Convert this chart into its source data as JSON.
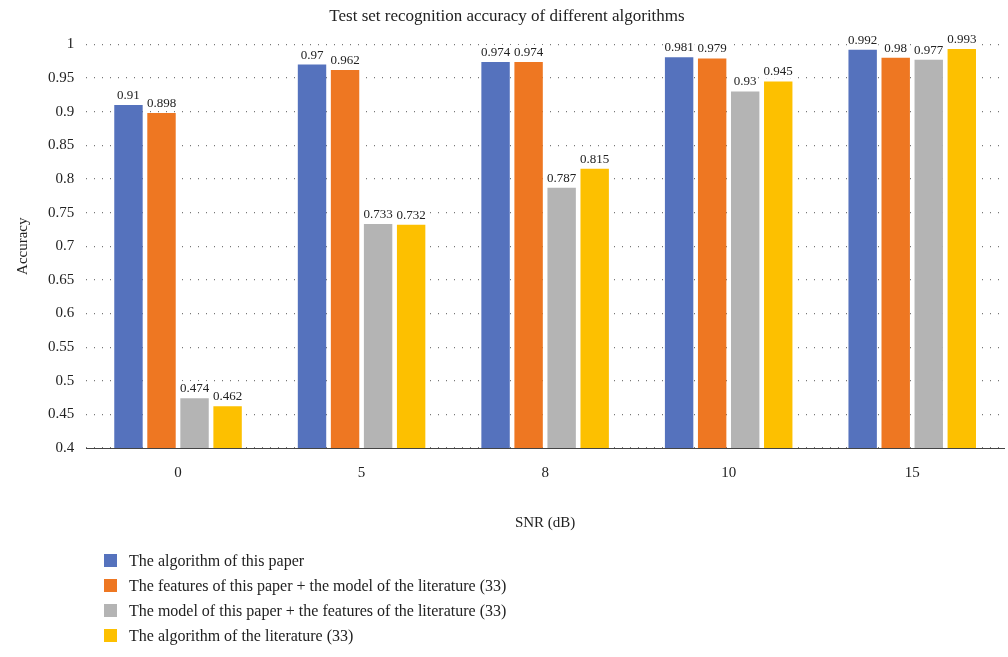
{
  "chart_data": {
    "type": "bar",
    "title": "Test set recognition accuracy of different algorithms",
    "xlabel": "SNR (dB)",
    "ylabel": "Accuracy",
    "categories": [
      "0",
      "5",
      "8",
      "10",
      "15"
    ],
    "series": [
      {
        "name": "The algorithm of this paper",
        "color": "#5572bd",
        "values": [
          0.91,
          0.97,
          0.974,
          0.981,
          0.992
        ]
      },
      {
        "name": "The features of this paper + the model of the literature (33)",
        "color": "#ee7722",
        "values": [
          0.898,
          0.962,
          0.974,
          0.979,
          0.98
        ]
      },
      {
        "name": "The model of this paper + the features of the literature (33)",
        "color": "#b4b4b4",
        "values": [
          0.474,
          0.733,
          0.787,
          0.93,
          0.977
        ]
      },
      {
        "name": "The algorithm of the literature (33)",
        "color": "#fdc000",
        "values": [
          0.462,
          0.732,
          0.815,
          0.945,
          0.993
        ]
      }
    ],
    "ylim": [
      0.4,
      1
    ],
    "yticks": [
      0.4,
      0.45,
      0.5,
      0.55,
      0.6,
      0.65,
      0.7,
      0.75,
      0.8,
      0.85,
      0.9,
      0.95,
      1
    ],
    "grid": "y",
    "legend": "bottom",
    "data_labels": true
  }
}
